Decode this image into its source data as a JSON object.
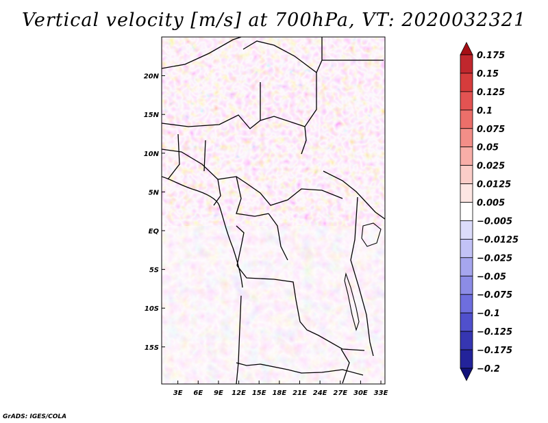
{
  "title": "Vertical velocity [m/s] at 700hPa, VT: 2020032321",
  "credit": "GrADS: IGES/COLA",
  "map": {
    "lon_range": [
      0,
      35
    ],
    "lat_range": [
      -20,
      25
    ],
    "lat_ticks": [
      {
        "lat": 20,
        "label": "20N"
      },
      {
        "lat": 15,
        "label": "15N"
      },
      {
        "lat": 10,
        "label": "10N"
      },
      {
        "lat": 5,
        "label": "5N"
      },
      {
        "lat": 0,
        "label": "EQ"
      },
      {
        "lat": -5,
        "label": "5S"
      },
      {
        "lat": -10,
        "label": "10S"
      },
      {
        "lat": -15,
        "label": "15S"
      }
    ],
    "lon_ticks": [
      {
        "lon": 3,
        "label": "3E"
      },
      {
        "lon": 6,
        "label": "6E"
      },
      {
        "lon": 9,
        "label": "9E"
      },
      {
        "lon": 12,
        "label": "12E"
      },
      {
        "lon": 15,
        "label": "15E"
      },
      {
        "lon": 18,
        "label": "18E"
      },
      {
        "lon": 21,
        "label": "21E"
      },
      {
        "lon": 24,
        "label": "24E"
      },
      {
        "lon": 27,
        "label": "27E"
      },
      {
        "lon": 30,
        "label": "30E"
      },
      {
        "lon": 33,
        "label": "33E"
      }
    ]
  },
  "colorbar": {
    "labels": [
      "0.175",
      "0.15",
      "0.125",
      "0.1",
      "0.075",
      "0.05",
      "0.025",
      "0.0125",
      "0.005",
      "-0.005",
      "-0.0125",
      "-0.025",
      "-0.05",
      "-0.075",
      "-0.1",
      "-0.125",
      "-0.175",
      "-0.2"
    ],
    "colors": [
      "#a50f15",
      "#c0272d",
      "#d63c3c",
      "#e35352",
      "#ec6f6a",
      "#f38e88",
      "#f8aea8",
      "#fbcdc8",
      "#fde6e3",
      "#ffffff",
      "#dcdcfb",
      "#c2c2f6",
      "#a6a6ee",
      "#8c8ce6",
      "#6e6ede",
      "#5050cc",
      "#3636b2",
      "#23239a",
      "#12127a"
    ]
  }
}
